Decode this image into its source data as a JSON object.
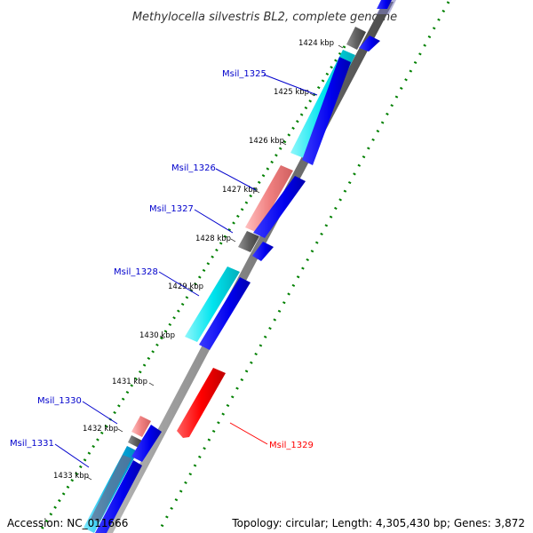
{
  "title": "Methylocella silvestris BL2, complete genome",
  "ticks": [
    "1424 kbp",
    "1425 kbp",
    "1426 kbp",
    "1427 kbp",
    "1428 kbp",
    "1429 kbp",
    "1430 kbp",
    "1431 kbp",
    "1432 kbp",
    "1433 kbp"
  ],
  "gene_labels": [
    {
      "name": "Msil_1325",
      "color": "#0000cc"
    },
    {
      "name": "Msil_1326",
      "color": "#0000cc"
    },
    {
      "name": "Msil_1327",
      "color": "#0000cc"
    },
    {
      "name": "Msil_1328",
      "color": "#0000cc"
    },
    {
      "name": "Msil_1330",
      "color": "#0000cc"
    },
    {
      "name": "Msil_1331",
      "color": "#0000cc"
    },
    {
      "name": "Msil_1329",
      "color": "#ff0000"
    }
  ],
  "colors": {
    "cds_forward": "#0000ee",
    "cds_reverse": "#ff0000",
    "blast_cyan": "#00e5ef",
    "blast_pink": "#f08080",
    "blast_gray": "#555555",
    "backbone": "#808080",
    "gc_dots": "#008000"
  },
  "footer": {
    "accession": "Accession: NC_011666",
    "topology": "Topology: circular; Length: 4,305,430 bp; Genes: 3,872"
  }
}
